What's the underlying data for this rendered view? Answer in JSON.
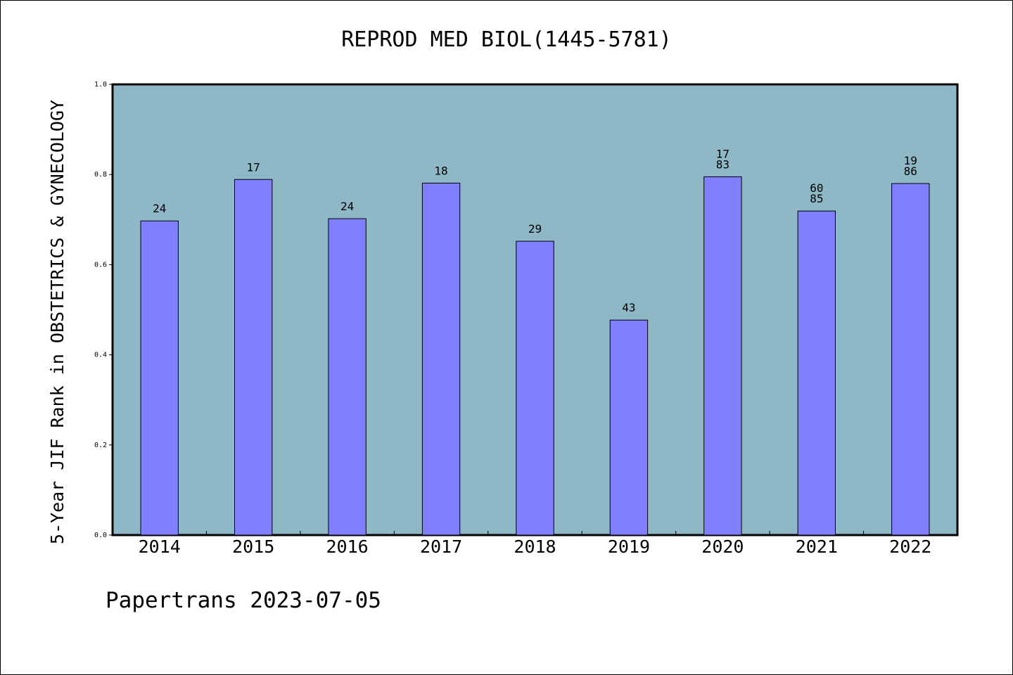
{
  "chart_data": {
    "type": "bar",
    "title": "REPROD MED BIOL(1445-5781)",
    "ylabel": "5-Year JIF Rank in OBSTETRICS & GYNECOLOGY",
    "xlabel": "",
    "ylim": [
      0,
      1.0
    ],
    "yticks": [
      "0.0",
      "0.2",
      "0.4",
      "0.6",
      "0.8",
      "1.0"
    ],
    "categories": [
      "2014",
      "2015",
      "2016",
      "2017",
      "2018",
      "2019",
      "2020",
      "2021",
      "2022"
    ],
    "values": [
      0.697,
      0.789,
      0.702,
      0.781,
      0.652,
      0.477,
      0.795,
      0.719,
      0.78
    ],
    "bar_labels": [
      [
        "24"
      ],
      [
        "17"
      ],
      [
        "24"
      ],
      [
        "18"
      ],
      [
        "29"
      ],
      [
        "43"
      ],
      [
        "17",
        "83"
      ],
      [
        "60",
        "85"
      ],
      [
        "19",
        "86"
      ]
    ],
    "plot_background": "#8fb8c6",
    "bar_color": "#8080ff",
    "grid": false
  },
  "footer": {
    "credit": "Papertrans 2023-07-05"
  }
}
